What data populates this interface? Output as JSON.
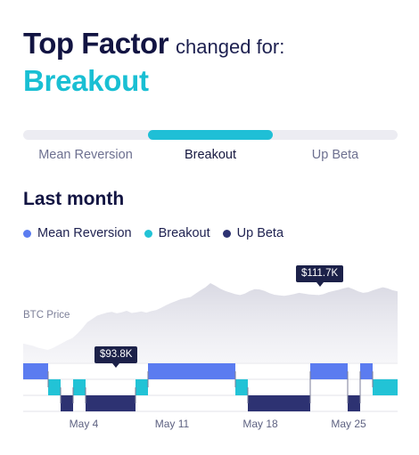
{
  "header": {
    "title": "Top Factor",
    "subtitle": "changed for:",
    "factor": "Breakout"
  },
  "tabs": {
    "items": [
      {
        "label": "Mean Reversion",
        "active": false
      },
      {
        "label": "Breakout",
        "active": true
      },
      {
        "label": "Up Beta",
        "active": false
      }
    ]
  },
  "section": {
    "title": "Last month"
  },
  "legend": [
    {
      "label": "Mean Reversion",
      "color": "#5b7cf0"
    },
    {
      "label": "Breakout",
      "color": "#22c3d6"
    },
    {
      "label": "Up Beta",
      "color": "#2d3272"
    }
  ],
  "chart_data": {
    "type": "area",
    "ylabel": "BTC Price",
    "callouts": [
      {
        "label": "$93.8K",
        "value": 93.8
      },
      {
        "label": "$111.7K",
        "value": 111.7
      }
    ],
    "x_ticks": [
      "May 4",
      "May 11",
      "May 18",
      "May 25"
    ],
    "price_series": [
      95.5,
      95.2,
      94.9,
      94.4,
      94.1,
      93.8,
      94.3,
      95.0,
      95.7,
      96.4,
      97.0,
      98.2,
      99.6,
      101.2,
      102.1,
      103.0,
      103.4,
      103.8,
      104.0,
      103.6,
      103.9,
      104.3,
      103.7,
      103.9,
      104.1,
      103.8,
      104.2,
      104.5,
      105.1,
      105.8,
      106.4,
      106.9,
      107.4,
      107.7,
      108.0,
      108.9,
      109.8,
      110.6,
      111.7,
      111.0,
      110.2,
      109.6,
      109.2,
      108.8,
      108.5,
      108.9,
      109.6,
      110.1,
      110.0,
      109.6,
      109.0,
      108.6,
      108.4,
      108.3,
      108.5,
      108.8,
      109.1,
      108.9,
      108.7,
      108.6,
      108.5,
      108.8,
      109.3,
      109.6,
      109.9,
      110.3,
      110.6,
      110.1,
      109.5,
      109.1,
      109.3,
      109.8,
      110.2,
      110.6,
      110.3,
      109.8,
      109.5
    ],
    "factor_rows": [
      "Mean Reversion",
      "Breakout",
      "Up Beta"
    ],
    "factor_segments": [
      {
        "factor": "Mean Reversion",
        "start": 0.0,
        "end": 1.0
      },
      {
        "factor": "Breakout",
        "start": 1.0,
        "end": 1.5
      },
      {
        "factor": "Up Beta",
        "start": 1.5,
        "end": 2.0
      },
      {
        "factor": "Breakout",
        "start": 2.0,
        "end": 2.5
      },
      {
        "factor": "Up Beta",
        "start": 2.5,
        "end": 4.5
      },
      {
        "factor": "Breakout",
        "start": 4.5,
        "end": 5.0
      },
      {
        "factor": "Mean Reversion",
        "start": 5.0,
        "end": 8.5
      },
      {
        "factor": "Breakout",
        "start": 8.5,
        "end": 9.0
      },
      {
        "factor": "Up Beta",
        "start": 9.0,
        "end": 11.5
      },
      {
        "factor": "Mean Reversion",
        "start": 11.5,
        "end": 13.0
      },
      {
        "factor": "Up Beta",
        "start": 13.0,
        "end": 13.5
      },
      {
        "factor": "Mean Reversion",
        "start": 13.5,
        "end": 14.0
      },
      {
        "factor": "Breakout",
        "start": 14.0,
        "end": 15.0
      }
    ]
  }
}
